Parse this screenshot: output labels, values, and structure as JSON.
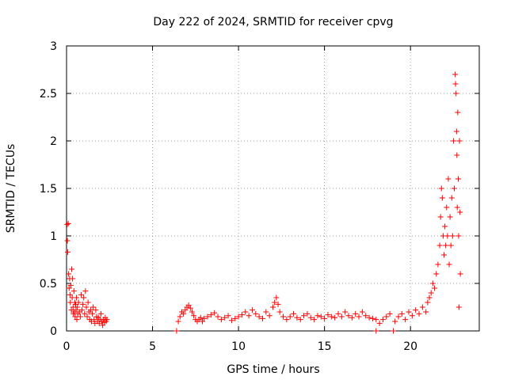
{
  "chart_data": {
    "type": "scatter",
    "title": "Day 222 of 2024, SRMTID for receiver cpvg",
    "xlabel": "GPS time / hours",
    "ylabel": "SRMTID / TECUs",
    "xlim": [
      0,
      24
    ],
    "ylim": [
      0,
      3
    ],
    "xticks": [
      0,
      5,
      10,
      15,
      20
    ],
    "yticks": [
      0,
      0.5,
      1,
      1.5,
      2,
      2.5,
      3
    ],
    "xtick_labels": [
      "0",
      "5",
      "10",
      "15",
      "20"
    ],
    "ytick_labels": [
      "0",
      "0.5",
      "1",
      "1.5",
      "2",
      "2.5",
      "3"
    ],
    "grid": true,
    "marker": "plus",
    "color": "#ff0000",
    "series": [
      {
        "values": [
          [
            0.03,
            1.12
          ],
          [
            0.05,
            0.95
          ],
          [
            0.07,
            0.83
          ],
          [
            0.1,
            1.13
          ],
          [
            0.12,
            0.6
          ],
          [
            0.15,
            0.45
          ],
          [
            0.18,
            0.55
          ],
          [
            0.2,
            0.38
          ],
          [
            0.22,
            0.3
          ],
          [
            0.25,
            0.48
          ],
          [
            0.28,
            0.22
          ],
          [
            0.3,
            0.65
          ],
          [
            0.33,
            0.35
          ],
          [
            0.35,
            0.55
          ],
          [
            0.38,
            0.25
          ],
          [
            0.4,
            0.18
          ],
          [
            0.43,
            0.42
          ],
          [
            0.45,
            0.2
          ],
          [
            0.48,
            0.3
          ],
          [
            0.5,
            0.15
          ],
          [
            0.53,
            0.28
          ],
          [
            0.55,
            0.22
          ],
          [
            0.58,
            0.35
          ],
          [
            0.6,
            0.12
          ],
          [
            0.63,
            0.25
          ],
          [
            0.65,
            0.18
          ],
          [
            0.7,
            0.3
          ],
          [
            0.75,
            0.2
          ],
          [
            0.8,
            0.15
          ],
          [
            0.85,
            0.38
          ],
          [
            0.9,
            0.22
          ],
          [
            0.95,
            0.28
          ],
          [
            1.0,
            0.35
          ],
          [
            1.05,
            0.18
          ],
          [
            1.1,
            0.42
          ],
          [
            1.15,
            0.25
          ],
          [
            1.2,
            0.15
          ],
          [
            1.25,
            0.3
          ],
          [
            1.3,
            0.2
          ],
          [
            1.35,
            0.12
          ],
          [
            1.4,
            0.22
          ],
          [
            1.45,
            0.1
          ],
          [
            1.5,
            0.18
          ],
          [
            1.55,
            0.25
          ],
          [
            1.6,
            0.12
          ],
          [
            1.65,
            0.08
          ],
          [
            1.7,
            0.22
          ],
          [
            1.75,
            0.15
          ],
          [
            1.8,
            0.1
          ],
          [
            1.85,
            0.14
          ],
          [
            1.9,
            0.08
          ],
          [
            1.95,
            0.12
          ],
          [
            2.0,
            0.18
          ],
          [
            2.05,
            0.1
          ],
          [
            2.1,
            0.06
          ],
          [
            2.15,
            0.12
          ],
          [
            2.2,
            0.09
          ],
          [
            2.25,
            0.14
          ],
          [
            2.3,
            0.1
          ],
          [
            2.35,
            0.12
          ],
          [
            6.4,
            0.0
          ],
          [
            6.5,
            0.1
          ],
          [
            6.6,
            0.15
          ],
          [
            6.7,
            0.2
          ],
          [
            6.8,
            0.18
          ],
          [
            6.9,
            0.22
          ],
          [
            7.0,
            0.25
          ],
          [
            7.1,
            0.27
          ],
          [
            7.2,
            0.24
          ],
          [
            7.3,
            0.2
          ],
          [
            7.4,
            0.16
          ],
          [
            7.5,
            0.12
          ],
          [
            7.6,
            0.1
          ],
          [
            7.7,
            0.12
          ],
          [
            7.8,
            0.14
          ],
          [
            7.9,
            0.1
          ],
          [
            8.0,
            0.13
          ],
          [
            8.2,
            0.15
          ],
          [
            8.4,
            0.17
          ],
          [
            8.6,
            0.19
          ],
          [
            8.8,
            0.15
          ],
          [
            9.0,
            0.12
          ],
          [
            9.2,
            0.14
          ],
          [
            9.4,
            0.16
          ],
          [
            9.6,
            0.11
          ],
          [
            9.8,
            0.13
          ],
          [
            10.0,
            0.15
          ],
          [
            10.2,
            0.17
          ],
          [
            10.4,
            0.2
          ],
          [
            10.6,
            0.16
          ],
          [
            10.8,
            0.22
          ],
          [
            11.0,
            0.18
          ],
          [
            11.2,
            0.15
          ],
          [
            11.4,
            0.13
          ],
          [
            11.6,
            0.2
          ],
          [
            11.8,
            0.16
          ],
          [
            12.0,
            0.25
          ],
          [
            12.1,
            0.3
          ],
          [
            12.2,
            0.35
          ],
          [
            12.3,
            0.28
          ],
          [
            12.4,
            0.2
          ],
          [
            12.6,
            0.15
          ],
          [
            12.8,
            0.12
          ],
          [
            13.0,
            0.15
          ],
          [
            13.2,
            0.18
          ],
          [
            13.4,
            0.14
          ],
          [
            13.6,
            0.12
          ],
          [
            13.8,
            0.16
          ],
          [
            14.0,
            0.18
          ],
          [
            14.2,
            0.14
          ],
          [
            14.4,
            0.12
          ],
          [
            14.6,
            0.16
          ],
          [
            14.8,
            0.15
          ],
          [
            15.0,
            0.13
          ],
          [
            15.2,
            0.17
          ],
          [
            15.4,
            0.15
          ],
          [
            15.6,
            0.14
          ],
          [
            15.8,
            0.18
          ],
          [
            16.0,
            0.15
          ],
          [
            16.2,
            0.2
          ],
          [
            16.4,
            0.16
          ],
          [
            16.6,
            0.14
          ],
          [
            16.8,
            0.18
          ],
          [
            17.0,
            0.15
          ],
          [
            17.2,
            0.2
          ],
          [
            17.4,
            0.16
          ],
          [
            17.6,
            0.14
          ],
          [
            17.8,
            0.13
          ],
          [
            18.0,
            0.12
          ],
          [
            18.0,
            0.0
          ],
          [
            18.2,
            0.08
          ],
          [
            18.4,
            0.12
          ],
          [
            18.6,
            0.15
          ],
          [
            18.8,
            0.18
          ],
          [
            19.0,
            0.0
          ],
          [
            19.1,
            0.1
          ],
          [
            19.3,
            0.15
          ],
          [
            19.5,
            0.18
          ],
          [
            19.7,
            0.12
          ],
          [
            19.9,
            0.2
          ],
          [
            20.1,
            0.16
          ],
          [
            20.3,
            0.22
          ],
          [
            20.5,
            0.18
          ],
          [
            20.7,
            0.25
          ],
          [
            20.9,
            0.2
          ],
          [
            21.0,
            0.3
          ],
          [
            21.1,
            0.35
          ],
          [
            21.2,
            0.4
          ],
          [
            21.3,
            0.5
          ],
          [
            21.4,
            0.45
          ],
          [
            21.5,
            0.6
          ],
          [
            21.6,
            0.7
          ],
          [
            21.7,
            0.9
          ],
          [
            21.75,
            1.2
          ],
          [
            21.8,
            1.5
          ],
          [
            21.85,
            1.4
          ],
          [
            21.9,
            1.0
          ],
          [
            21.95,
            0.8
          ],
          [
            22.0,
            1.1
          ],
          [
            22.05,
            0.9
          ],
          [
            22.1,
            1.3
          ],
          [
            22.15,
            1.0
          ],
          [
            22.2,
            1.6
          ],
          [
            22.25,
            0.7
          ],
          [
            22.3,
            1.2
          ],
          [
            22.35,
            0.9
          ],
          [
            22.4,
            1.4
          ],
          [
            22.45,
            1.0
          ],
          [
            22.5,
            2.0
          ],
          [
            22.55,
            1.5
          ],
          [
            22.6,
            2.7
          ],
          [
            22.62,
            2.6
          ],
          [
            22.65,
            2.5
          ],
          [
            22.68,
            2.1
          ],
          [
            22.7,
            1.85
          ],
          [
            22.72,
            1.3
          ],
          [
            22.75,
            2.3
          ],
          [
            22.78,
            1.6
          ],
          [
            22.8,
            1.0
          ],
          [
            22.82,
            0.25
          ],
          [
            22.85,
            2.0
          ],
          [
            22.88,
            1.25
          ],
          [
            22.9,
            0.6
          ]
        ]
      }
    ]
  }
}
